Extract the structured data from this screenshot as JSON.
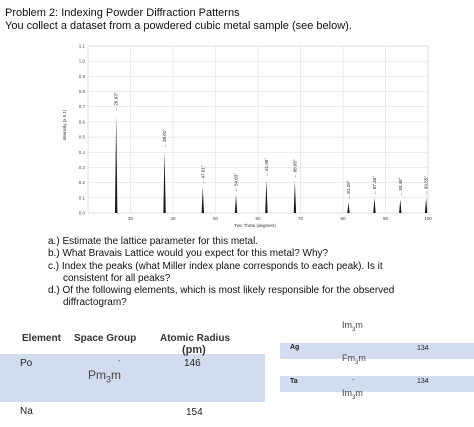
{
  "header": {
    "title": "Problem 2: Indexing Powder Diffraction Patterns",
    "subtitle": "You collect a dataset from a powdered cubic metal sample (see below)."
  },
  "chart_data": {
    "type": "bar",
    "xlabel": "Two Theta (degrees)",
    "ylabel": "Intensity (x 0.1)",
    "xlim": [
      20,
      100
    ],
    "ylim": [
      0,
      1.1
    ],
    "x_ticks": [
      "30",
      "40",
      "50",
      "60",
      "70",
      "80",
      "90",
      "100"
    ],
    "y_ticks": [
      "0.0",
      "0.1",
      "0.2",
      "0.3",
      "0.4",
      "0.5",
      "0.6",
      "0.7",
      "0.8",
      "0.9",
      "1.0",
      "1.1"
    ],
    "peaks": [
      {
        "x": 26.63,
        "y": 0.65,
        "label": "26.63°"
      },
      {
        "x": 38.01,
        "y": 0.41,
        "label": "38.01°"
      },
      {
        "x": 47.01,
        "y": 0.17,
        "label": "47.01°"
      },
      {
        "x": 54.83,
        "y": 0.12,
        "label": "54.83°"
      },
      {
        "x": 61.98,
        "y": 0.22,
        "label": "61.98°"
      },
      {
        "x": 68.68,
        "y": 0.21,
        "label": "68.68°"
      },
      {
        "x": 81.29,
        "y": 0.07,
        "label": "81.29°"
      },
      {
        "x": 87.4,
        "y": 0.1,
        "label": "87.40°"
      },
      {
        "x": 93.48,
        "y": 0.09,
        "label": "93.48°"
      },
      {
        "x": 99.55,
        "y": 0.1,
        "label": "99.55°"
      }
    ],
    "grid": true,
    "peak_color": "#1a1a1a",
    "grid_color": "#d8d8d8"
  },
  "questions": [
    {
      "line": "a.) Estimate the lattice parameter for this metal."
    },
    {
      "line": "b.) What Bravais Lattice would you expect for this metal? Why?"
    },
    {
      "line": "c.) Index the peaks (what Miller index plane corresponds to each peak). Is it"
    },
    {
      "line": "consistent for all peaks?"
    },
    {
      "line": "d.) Of the following elements, which is most likely responsible for the observed"
    },
    {
      "line": "diffractogram?"
    }
  ],
  "table_left": {
    "headers": {
      "element": "Element",
      "space_group": "Space Group",
      "radius": "Atomic Radius",
      "radius_unit": "(pm)"
    },
    "rows": [
      {
        "element": "Po",
        "dash": "-",
        "space_group_main": "Pm",
        "space_group_sub": "3",
        "space_group_end": "m",
        "radius": "146"
      },
      {
        "element": "Na",
        "space_group_main": "",
        "space_group_sub": "",
        "space_group_end": "",
        "radius": "154"
      }
    ],
    "band_color": "#d3dcee"
  },
  "table_right": {
    "top_sg": {
      "main": "Im",
      "sub": "3",
      "end": "m"
    },
    "rows": [
      {
        "element": "Ag",
        "sg_main": "Fm",
        "sg_sub": "3",
        "sg_end": "m",
        "radius": "134"
      },
      {
        "element": "Ta",
        "dash": "-",
        "sg_main": "Im",
        "sg_sub": "3",
        "sg_end": "m",
        "radius": "134"
      }
    ]
  }
}
